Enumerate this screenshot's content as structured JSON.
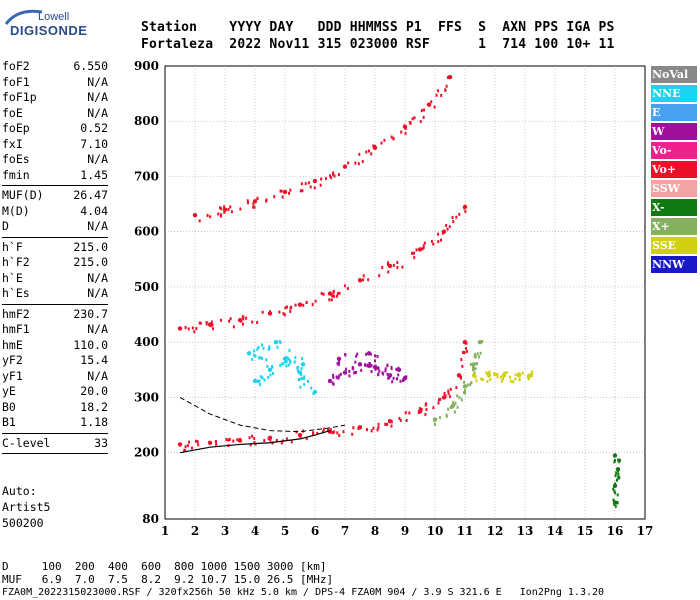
{
  "logo": {
    "top": "Lowell",
    "main": "DIGISONDE"
  },
  "header": {
    "labels": [
      "Station",
      "YYYY DAY",
      "DDD HHMMSS",
      "P1",
      "FFS",
      "S",
      "AXN",
      "PPS",
      "IGA",
      "PS"
    ],
    "line1": "Station    YYYY DAY   DDD HHMMSS P1  FFS  S  AXN PPS IGA PS",
    "line2": "Fortaleza  2022 Nov11 315 023000 RSF      1  714 100 10+ 11"
  },
  "params_group1": [
    {
      "name": "foF2",
      "value": "6.550"
    },
    {
      "name": "foF1",
      "value": "N/A"
    },
    {
      "name": "foF1p",
      "value": "N/A"
    },
    {
      "name": "foE",
      "value": "N/A"
    },
    {
      "name": "foEp",
      "value": "0.52"
    },
    {
      "name": "fxI",
      "value": "7.10"
    },
    {
      "name": "foEs",
      "value": "N/A"
    },
    {
      "name": "fmin",
      "value": "1.45"
    }
  ],
  "params_group2": [
    {
      "name": "MUF(D)",
      "value": "26.47"
    },
    {
      "name": "M(D)",
      "value": "4.04"
    },
    {
      "name": "D",
      "value": "N/A"
    }
  ],
  "params_group3": [
    {
      "name": "h`F",
      "value": "215.0"
    },
    {
      "name": "h`F2",
      "value": "215.0"
    },
    {
      "name": "h`E",
      "value": "N/A"
    },
    {
      "name": "h`Es",
      "value": "N/A"
    }
  ],
  "params_group4": [
    {
      "name": "hmF2",
      "value": "230.7"
    },
    {
      "name": "hmF1",
      "value": "N/A"
    },
    {
      "name": "hmE",
      "value": "110.0"
    },
    {
      "name": "yF2",
      "value": "15.4"
    },
    {
      "name": "yF1",
      "value": "N/A"
    },
    {
      "name": "yE",
      "value": "20.0"
    },
    {
      "name": "B0",
      "value": "18.2"
    },
    {
      "name": "B1",
      "value": "1.18"
    }
  ],
  "params_group5": [
    {
      "name": "C-level",
      "value": "33"
    }
  ],
  "auto": {
    "line1": "Auto:",
    "line2": "Artist5",
    "line3": "500200"
  },
  "legend": [
    {
      "label": "NoVal",
      "color": "#888888"
    },
    {
      "label": "NNE",
      "color": "#19d3f0"
    },
    {
      "label": "E",
      "color": "#4aa0f0"
    },
    {
      "label": "W",
      "color": "#a0109a"
    },
    {
      "label": "Vo-",
      "color": "#f0208c"
    },
    {
      "label": "Vo+",
      "color": "#ee1028"
    },
    {
      "label": "SSW",
      "color": "#f2a4a4"
    },
    {
      "label": "X-",
      "color": "#107a10"
    },
    {
      "label": "X+",
      "color": "#84b060"
    },
    {
      "label": "SSE",
      "color": "#d0d010"
    },
    {
      "label": "NNW",
      "color": "#1818c8"
    }
  ],
  "chart_data": {
    "type": "scatter",
    "xlim": [
      1,
      17
    ],
    "ylim": [
      80,
      900
    ],
    "x_ticks": [
      1,
      2,
      3,
      4,
      5,
      6,
      7,
      8,
      9,
      10,
      11,
      12,
      13,
      14,
      15,
      16,
      17
    ],
    "y_ticks": [
      80,
      200,
      300,
      400,
      500,
      600,
      700,
      800,
      900
    ],
    "grid": true,
    "series": [
      {
        "color": "#ee1028",
        "x": [
          1.5,
          2.5,
          3.5,
          4.5,
          5.5,
          6.5,
          7.5,
          8.5,
          9.5,
          10.3,
          10.8,
          11.0
        ],
        "y": [
          215,
          218,
          222,
          227,
          232,
          238,
          246,
          257,
          275,
          300,
          340,
          400
        ]
      },
      {
        "color": "#ee1028",
        "x": [
          1.5,
          2.5,
          3.5,
          4.5,
          5.5,
          6.5,
          7.5,
          8.5,
          9.5,
          10.3,
          11.0
        ],
        "y": [
          425,
          432,
          440,
          452,
          468,
          488,
          512,
          538,
          568,
          600,
          645
        ]
      },
      {
        "color": "#ee1028",
        "x": [
          2.0,
          3.0,
          4.0,
          5.0,
          6.0,
          7.0,
          8.0,
          9.0,
          9.8,
          10.5
        ],
        "y": [
          630,
          640,
          655,
          672,
          692,
          718,
          752,
          790,
          830,
          880
        ]
      },
      {
        "color": "#84b060",
        "x": [
          10.0,
          10.6,
          11.0,
          11.3,
          11.5
        ],
        "y": [
          260,
          285,
          320,
          360,
          400
        ]
      },
      {
        "color": "#d0d010",
        "x": [
          11.3,
          11.8,
          12.3,
          12.8,
          13.2
        ],
        "y": [
          340,
          340,
          340,
          340,
          340
        ]
      },
      {
        "color": "#19d3f0",
        "x": [
          4.0,
          4.5,
          5.0,
          5.5,
          6.0,
          3.8,
          4.7,
          5.6
        ],
        "y": [
          330,
          350,
          370,
          345,
          310,
          380,
          400,
          360
        ]
      },
      {
        "color": "#a0109a",
        "x": [
          6.5,
          7.0,
          7.5,
          8.0,
          8.5,
          9.0,
          6.8,
          7.8,
          8.8
        ],
        "y": [
          330,
          345,
          360,
          355,
          340,
          335,
          370,
          380,
          350
        ]
      },
      {
        "color": "#107a10",
        "x": [
          16.0,
          16.0,
          16.1,
          16.0
        ],
        "y": [
          110,
          140,
          170,
          195
        ]
      }
    ],
    "trace": {
      "x": [
        1.5,
        2.5,
        3.5,
        4.5,
        5.5,
        6.0,
        6.5
      ],
      "y": [
        200,
        210,
        215,
        218,
        225,
        232,
        240
      ]
    },
    "dashed": {
      "x": [
        1.5,
        2.5,
        3.5,
        4.5,
        5.5,
        6.5,
        7.0
      ],
      "y": [
        300,
        270,
        250,
        240,
        238,
        245,
        250
      ]
    }
  },
  "footer": {
    "line1": "D     100  200  400  600  800 1000 1500 3000 [km]",
    "line2": "MUF   6.9  7.0  7.5  8.2  9.2 10.7 15.0 26.5 [MHz]",
    "line3": "FZA0M_2022315023000.RSF / 320fx256h 50 kHz 5.0 km / DPS-4 FZA0M 904 / 3.9 S 321.6 E   Ion2Png 1.3.20"
  }
}
